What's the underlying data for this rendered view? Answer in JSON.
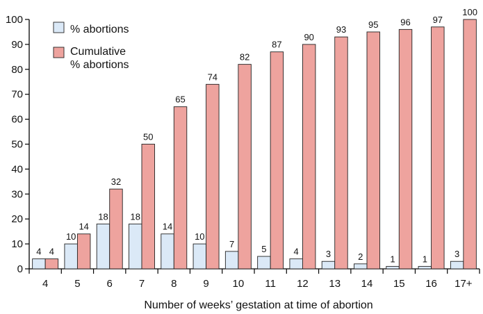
{
  "chart_data": {
    "type": "bar",
    "xlabel": "Number of weeks’ gestation at time of abortion",
    "ylabel": "",
    "ylim": [
      0,
      100
    ],
    "yticks": [
      0,
      10,
      20,
      30,
      40,
      50,
      60,
      70,
      80,
      90,
      100
    ],
    "categories": [
      "4",
      "5",
      "6",
      "7",
      "8",
      "9",
      "10",
      "11",
      "12",
      "13",
      "14",
      "15",
      "16",
      "17+"
    ],
    "series": [
      {
        "name": "% abortions",
        "color": "#dbe9f7",
        "values": [
          4,
          10,
          18,
          18,
          14,
          10,
          7,
          5,
          4,
          3,
          2,
          1,
          1,
          3
        ],
        "labels": [
          "4",
          "10",
          "18",
          "18",
          "14",
          "10",
          "7",
          "5",
          "4",
          "3",
          "2",
          "1",
          "1",
          "3"
        ]
      },
      {
        "name": "Cumulative\n% abortions",
        "color": "#eea39e",
        "values": [
          4,
          14,
          32,
          50,
          65,
          74,
          82,
          87,
          90,
          93,
          95,
          96,
          97,
          100
        ],
        "labels": [
          "4",
          "14",
          "32",
          "50",
          "65",
          "74",
          "82",
          "87",
          "90",
          "93",
          "95",
          "96",
          "97",
          "100"
        ]
      }
    ],
    "legend": "top-left",
    "grid": false
  }
}
